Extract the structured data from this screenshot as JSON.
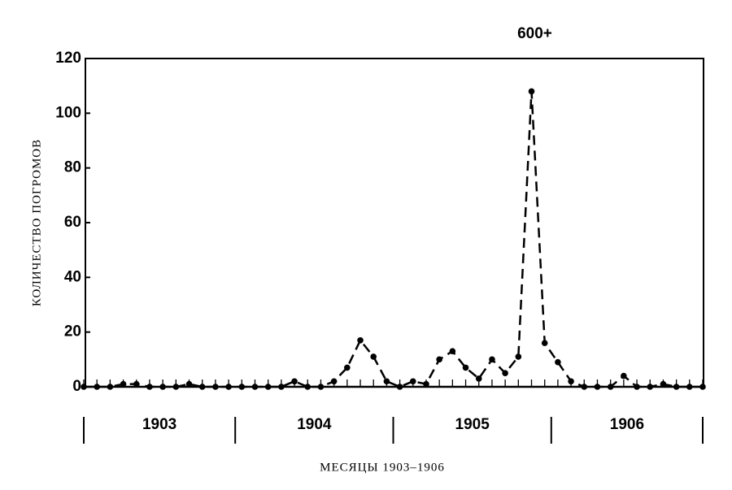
{
  "chart_data": {
    "type": "line",
    "annotation": "600+",
    "ylabel": "КОЛИЧЕСТВО ПОГРОМОВ",
    "xlabel": "МЕСЯЦЫ 1903–1906",
    "groups": [
      "1903",
      "1904",
      "1905",
      "1906"
    ],
    "categories": [
      null,
      null,
      null,
      null,
      null,
      null,
      null,
      null,
      null,
      null,
      null,
      null,
      null,
      null,
      null,
      null,
      null,
      null,
      null,
      null,
      null,
      null,
      null,
      null,
      null,
      null,
      null,
      null,
      null,
      null,
      null,
      null,
      null,
      null,
      null,
      null,
      null,
      null,
      null,
      null,
      null,
      null,
      null,
      null,
      null,
      null,
      null,
      null
    ],
    "series": [
      {
        "color": "#000000",
        "values": [
          0,
          0,
          0,
          1,
          1,
          0,
          0,
          0,
          1,
          0,
          0,
          0,
          0,
          0,
          0,
          0,
          2,
          0,
          0,
          2,
          7,
          17,
          11,
          2,
          0,
          2,
          1,
          10,
          13,
          7,
          3,
          10,
          5,
          11,
          108,
          16,
          9,
          2,
          0,
          0,
          0,
          4,
          0,
          0,
          1,
          0,
          0,
          0
        ]
      }
    ],
    "ylim": [
      0,
      120
    ],
    "yticks": [
      0,
      20,
      40,
      60,
      80,
      100,
      120
    ]
  }
}
